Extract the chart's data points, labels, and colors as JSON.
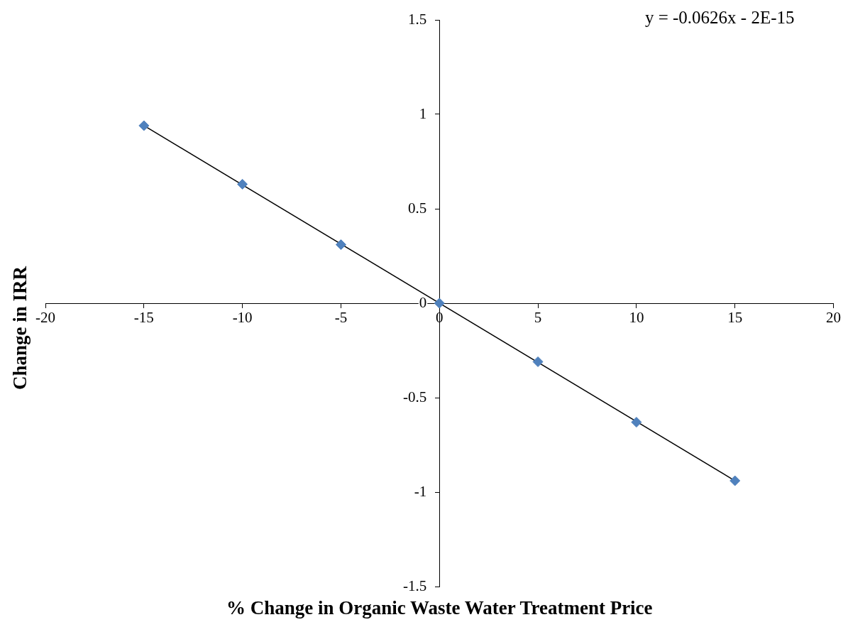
{
  "chart_data": {
    "type": "scatter",
    "xlabel": "% Change in Organic Waste Water Treatment Price",
    "ylabel": "Change in IRR",
    "annotations": [
      "y = -0.0626x - 2E-15"
    ],
    "xlim": [
      -20,
      20
    ],
    "ylim": [
      -1.5,
      1.5
    ],
    "xticks": [
      -20,
      -15,
      -10,
      -5,
      0,
      5,
      10,
      15,
      20
    ],
    "yticks": [
      -1.5,
      -1,
      -0.5,
      0,
      0.5,
      1,
      1.5
    ],
    "grid": false,
    "legend": false,
    "marker": "diamond",
    "series": [
      {
        "type": "scatter",
        "color": "#4f81bd",
        "x": [
          -15,
          -10,
          -5,
          0,
          5,
          10,
          15
        ],
        "values": [
          0.94,
          0.63,
          0.31,
          0,
          -0.31,
          -0.63,
          -0.94
        ]
      },
      {
        "type": "line",
        "color": "#000000",
        "marker": "none",
        "line_style": "solid",
        "x": [
          -15,
          15
        ],
        "values": [
          0.94,
          -0.94
        ]
      }
    ]
  }
}
